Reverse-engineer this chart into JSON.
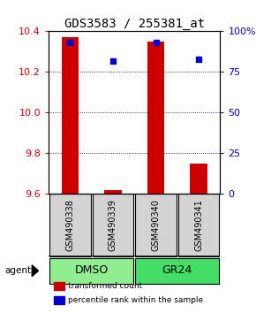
{
  "title": "GDS3583 / 255381_at",
  "samples": [
    "GSM490338",
    "GSM490339",
    "GSM490340",
    "GSM490341"
  ],
  "groups": [
    {
      "label": "DMSO",
      "indices": [
        0,
        1
      ],
      "color": "#90EE90"
    },
    {
      "label": "GR24",
      "indices": [
        2,
        3
      ],
      "color": "#44DD66"
    }
  ],
  "bar_values": [
    10.37,
    9.62,
    10.35,
    9.75
  ],
  "bar_base": 9.6,
  "percentile_values": [
    93,
    82,
    93,
    83
  ],
  "ylim_left": [
    9.6,
    10.4
  ],
  "ylim_right": [
    0,
    100
  ],
  "yticks_left": [
    9.6,
    9.8,
    10.0,
    10.2,
    10.4
  ],
  "yticks_right": [
    0,
    25,
    50,
    75,
    100
  ],
  "bar_color": "#CC0000",
  "dot_color": "#0000CC",
  "legend_items": [
    {
      "label": "transformed count",
      "color": "#CC0000"
    },
    {
      "label": "percentile rank within the sample",
      "color": "#0000CC"
    }
  ],
  "axis_label_color_left": "#CC0000",
  "axis_label_color_right": "#0000CC",
  "group_label_fontsize": 9,
  "sample_label_fontsize": 7,
  "title_fontsize": 10,
  "background_color": "#ffffff",
  "sample_box_color": "#d3d3d3"
}
